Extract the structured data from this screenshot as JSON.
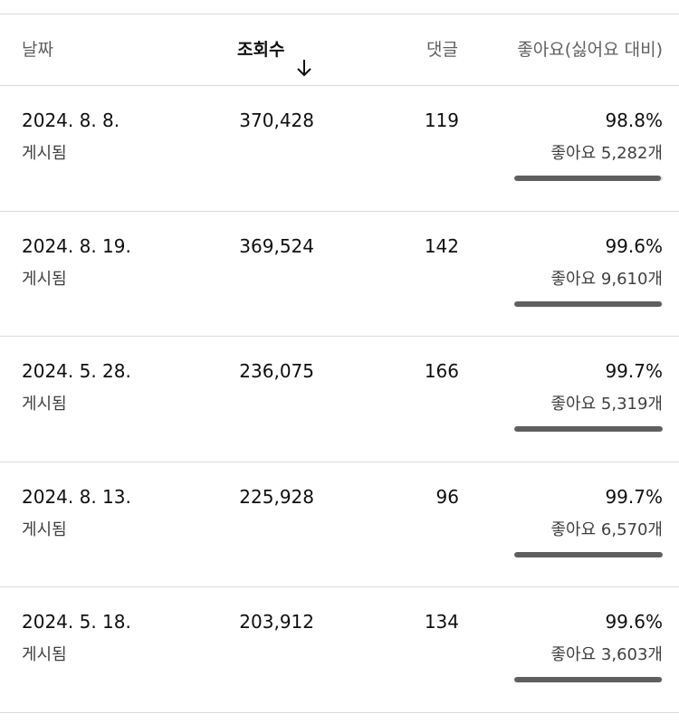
{
  "header": {
    "date": "날짜",
    "views": "조회수",
    "sort_icon": "arrow-down-icon",
    "comments": "댓글",
    "likes": "좋아요(싫어요 대비)"
  },
  "rows": [
    {
      "date": "2024. 8. 8.",
      "status": "게시됨",
      "views": "370,428",
      "comments": "119",
      "like_ratio": "98.8%",
      "like_ratio_value": 98.8,
      "likes": "좋아요 5,282개"
    },
    {
      "date": "2024. 8. 19.",
      "status": "게시됨",
      "views": "369,524",
      "comments": "142",
      "like_ratio": "99.6%",
      "like_ratio_value": 99.6,
      "likes": "좋아요 9,610개"
    },
    {
      "date": "2024. 5. 28.",
      "status": "게시됨",
      "views": "236,075",
      "comments": "166",
      "like_ratio": "99.7%",
      "like_ratio_value": 99.7,
      "likes": "좋아요 5,319개"
    },
    {
      "date": "2024. 8. 13.",
      "status": "게시됨",
      "views": "225,928",
      "comments": "96",
      "like_ratio": "99.7%",
      "like_ratio_value": 99.7,
      "likes": "좋아요 6,570개"
    },
    {
      "date": "2024. 5. 18.",
      "status": "게시됨",
      "views": "203,912",
      "comments": "134",
      "like_ratio": "99.6%",
      "like_ratio_value": 99.6,
      "likes": "좋아요 3,603개"
    }
  ],
  "colors": {
    "bar_fill": "#5f5f5f",
    "bar_track": "#dedede",
    "divider": "#d9d9d9"
  }
}
